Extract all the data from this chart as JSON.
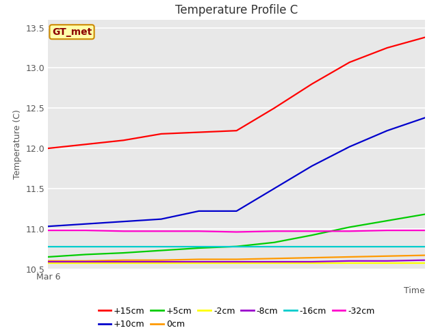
{
  "title": "Temperature Profile C",
  "xlabel": "Time",
  "ylabel": "Temperature (C)",
  "annotation": "GT_met",
  "ylim": [
    10.5,
    13.6
  ],
  "background_color": "#e8e8e8",
  "series": [
    {
      "label": "+15cm",
      "color": "#ff0000",
      "x": [
        0,
        1,
        2,
        3,
        4,
        5,
        6,
        7,
        8,
        9,
        10
      ],
      "y": [
        12.0,
        12.05,
        12.1,
        12.18,
        12.2,
        12.22,
        12.5,
        12.8,
        13.07,
        13.25,
        13.38
      ]
    },
    {
      "label": "+10cm",
      "color": "#0000cc",
      "x": [
        0,
        1,
        2,
        3,
        4,
        5,
        6,
        7,
        8,
        9,
        10
      ],
      "y": [
        11.03,
        11.06,
        11.09,
        11.12,
        11.22,
        11.22,
        11.5,
        11.78,
        12.02,
        12.22,
        12.38
      ]
    },
    {
      "label": "+5cm",
      "color": "#00cc00",
      "x": [
        0,
        1,
        2,
        3,
        4,
        5,
        6,
        7,
        8,
        9,
        10
      ],
      "y": [
        10.65,
        10.68,
        10.7,
        10.73,
        10.76,
        10.78,
        10.83,
        10.92,
        11.02,
        11.1,
        11.18
      ]
    },
    {
      "label": "0cm",
      "color": "#ff9900",
      "x": [
        0,
        1,
        2,
        3,
        4,
        5,
        6,
        7,
        8,
        9,
        10
      ],
      "y": [
        10.6,
        10.6,
        10.61,
        10.61,
        10.62,
        10.62,
        10.63,
        10.64,
        10.65,
        10.66,
        10.67
      ]
    },
    {
      "label": "-2cm",
      "color": "#ffff00",
      "x": [
        0,
        1,
        2,
        3,
        4,
        5,
        6,
        7,
        8,
        9,
        10
      ],
      "y": [
        10.57,
        10.57,
        10.57,
        10.57,
        10.57,
        10.57,
        10.57,
        10.57,
        10.57,
        10.57,
        10.57
      ]
    },
    {
      "label": "-8cm",
      "color": "#9900cc",
      "x": [
        0,
        1,
        2,
        3,
        4,
        5,
        6,
        7,
        8,
        9,
        10
      ],
      "y": [
        10.59,
        10.59,
        10.59,
        10.59,
        10.59,
        10.59,
        10.59,
        10.59,
        10.6,
        10.6,
        10.61
      ]
    },
    {
      "label": "-16cm",
      "color": "#00cccc",
      "x": [
        0,
        1,
        2,
        3,
        4,
        5,
        6,
        7,
        8,
        9,
        10
      ],
      "y": [
        10.78,
        10.78,
        10.78,
        10.78,
        10.78,
        10.78,
        10.78,
        10.78,
        10.78,
        10.78,
        10.78
      ]
    },
    {
      "label": "-32cm",
      "color": "#ff00cc",
      "x": [
        0,
        1,
        2,
        3,
        4,
        5,
        6,
        7,
        8,
        9,
        10
      ],
      "y": [
        10.98,
        10.98,
        10.97,
        10.97,
        10.97,
        10.96,
        10.97,
        10.97,
        10.97,
        10.98,
        10.98
      ]
    }
  ],
  "xtick_label": "Mar 6",
  "yticks": [
    10.5,
    11.0,
    11.5,
    12.0,
    12.5,
    13.0,
    13.5
  ],
  "title_fontsize": 12,
  "label_fontsize": 9,
  "tick_fontsize": 9,
  "legend_fontsize": 9,
  "legend_order": [
    "+15cm",
    "+10cm",
    "+5cm",
    "0cm",
    "-2cm",
    "-8cm",
    "-16cm",
    "-32cm"
  ]
}
